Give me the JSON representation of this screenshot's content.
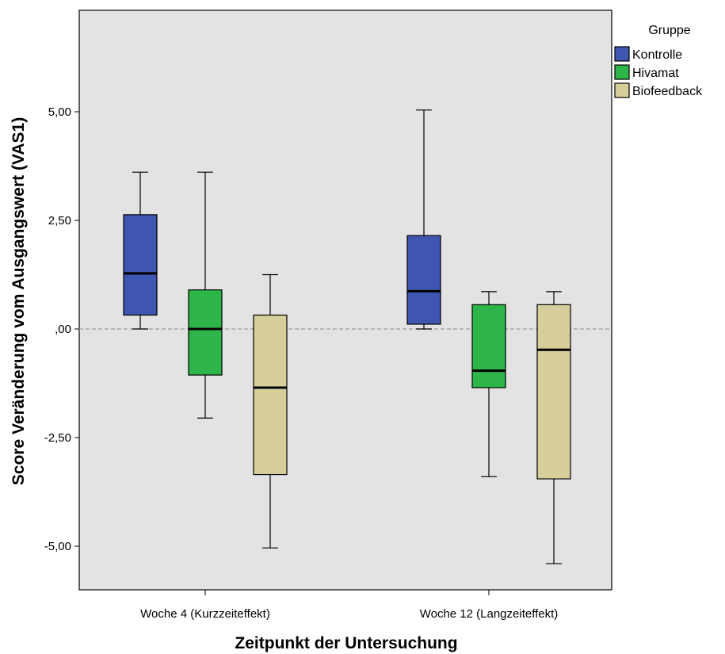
{
  "chart_data": {
    "type": "boxplot",
    "xlabel": "Zeitpunkt der Untersuchung",
    "ylabel": "Score Veränderung vom Ausgangswert (VAS1)",
    "categories": [
      "Woche 4 (Kurzzeiteffekt)",
      "Woche 12 (Langzeiteffekt)"
    ],
    "ylim": [
      -6.0,
      7.4
    ],
    "yticks": [
      {
        "value": 5.0,
        "label": "5,00"
      },
      {
        "value": 2.5,
        "label": "2,50"
      },
      {
        "value": 0.0,
        "label": ",00"
      },
      {
        "value": -2.5,
        "label": "-2,50"
      },
      {
        "value": -5.0,
        "label": "-5,00"
      }
    ],
    "reference_line": {
      "value": 0.0,
      "style": "dashed"
    },
    "grid": false,
    "legend": {
      "title": "Gruppe",
      "placement": "right"
    },
    "series": [
      {
        "name": "Kontrolle",
        "color": "#3f56b0",
        "boxes": [
          {
            "min": 0.0,
            "q1": 0.32,
            "median": 1.28,
            "q3": 2.63,
            "max": 3.61
          },
          {
            "min": 0.0,
            "q1": 0.11,
            "median": 0.87,
            "q3": 2.15,
            "max": 5.04
          }
        ]
      },
      {
        "name": "Hivamat",
        "color": "#2db54a",
        "boxes": [
          {
            "min": -2.05,
            "q1": -1.06,
            "median": 0.0,
            "q3": 0.9,
            "max": 3.61
          },
          {
            "min": -3.4,
            "q1": -1.35,
            "median": -0.96,
            "q3": 0.56,
            "max": 0.86
          }
        ]
      },
      {
        "name": "Biofeedback",
        "color": "#d6cf9b",
        "boxes": [
          {
            "min": -5.04,
            "q1": -3.35,
            "median": -1.35,
            "q3": 0.32,
            "max": 1.25
          },
          {
            "min": -5.4,
            "q1": -3.45,
            "median": -0.48,
            "q3": 0.56,
            "max": 0.86
          }
        ]
      }
    ]
  }
}
